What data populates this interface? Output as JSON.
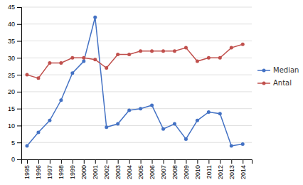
{
  "chart_data": {
    "type": "line",
    "x": [
      1995,
      1996,
      1997,
      1998,
      1999,
      2000,
      2001,
      2002,
      2003,
      2004,
      2005,
      2006,
      2007,
      2008,
      2009,
      2010,
      2011,
      2012,
      2013,
      2014
    ],
    "series": [
      {
        "name": "Median",
        "color": "#4472C4",
        "marker": "circle",
        "values": [
          4,
          8,
          11.5,
          17.5,
          25.5,
          29,
          42,
          9.5,
          10.5,
          14.5,
          15,
          16,
          9,
          10.5,
          6,
          11.5,
          14,
          13.5,
          4,
          4.5
        ]
      },
      {
        "name": "Antal",
        "color": "#C0504D",
        "marker": "circle",
        "values": [
          25,
          24,
          28.5,
          28.5,
          30,
          30,
          29.5,
          27,
          31,
          31,
          32,
          32,
          32,
          32,
          33,
          29,
          30,
          30,
          33,
          34
        ]
      }
    ],
    "xlim": [
      1994.5,
      2014.8
    ],
    "xticks": [
      1995,
      1996,
      1997,
      1998,
      1999,
      2000,
      2001,
      2002,
      2003,
      2004,
      2005,
      2006,
      2007,
      2008,
      2009,
      2010,
      2011,
      2012,
      2013,
      2014
    ],
    "ylim": [
      0,
      45
    ],
    "yticks": [
      0,
      5,
      10,
      15,
      20,
      25,
      30,
      35,
      40,
      45
    ],
    "grid": true,
    "legend": "right"
  }
}
